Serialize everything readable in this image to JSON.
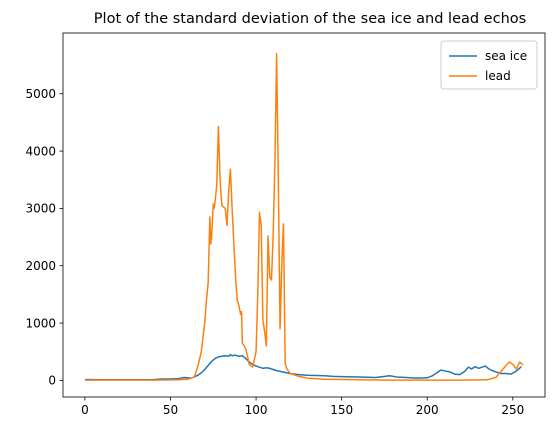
{
  "chart_data": {
    "type": "line",
    "title": "Plot of the standard deviation of the sea ice and lead echos",
    "xlabel": "",
    "ylabel": "",
    "xlim": [
      -12.8,
      268.8
    ],
    "ylim": [
      -290,
      6060
    ],
    "xticks": [
      0,
      50,
      100,
      150,
      200,
      250
    ],
    "yticks": [
      0,
      1000,
      2000,
      3000,
      4000,
      5000
    ],
    "grid": false,
    "legend_position": "top-right",
    "series": [
      {
        "name": "sea ice",
        "color": "#1f77b4",
        "points": [
          [
            0,
            15
          ],
          [
            10,
            12
          ],
          [
            20,
            12
          ],
          [
            30,
            12
          ],
          [
            40,
            14
          ],
          [
            45,
            25
          ],
          [
            50,
            25
          ],
          [
            55,
            30
          ],
          [
            58,
            50
          ],
          [
            60,
            45
          ],
          [
            62,
            40
          ],
          [
            64,
            60
          ],
          [
            66,
            90
          ],
          [
            68,
            130
          ],
          [
            70,
            190
          ],
          [
            72,
            260
          ],
          [
            74,
            330
          ],
          [
            76,
            380
          ],
          [
            78,
            410
          ],
          [
            80,
            420
          ],
          [
            82,
            430
          ],
          [
            84,
            420
          ],
          [
            85,
            450
          ],
          [
            86,
            430
          ],
          [
            88,
            440
          ],
          [
            90,
            420
          ],
          [
            92,
            430
          ],
          [
            94,
            380
          ],
          [
            96,
            320
          ],
          [
            98,
            280
          ],
          [
            100,
            250
          ],
          [
            102,
            230
          ],
          [
            104,
            210
          ],
          [
            106,
            220
          ],
          [
            108,
            210
          ],
          [
            110,
            190
          ],
          [
            112,
            170
          ],
          [
            115,
            150
          ],
          [
            120,
            120
          ],
          [
            125,
            100
          ],
          [
            130,
            90
          ],
          [
            140,
            80
          ],
          [
            145,
            70
          ],
          [
            150,
            65
          ],
          [
            160,
            60
          ],
          [
            170,
            50
          ],
          [
            175,
            70
          ],
          [
            178,
            80
          ],
          [
            182,
            60
          ],
          [
            185,
            55
          ],
          [
            190,
            45
          ],
          [
            195,
            40
          ],
          [
            200,
            45
          ],
          [
            203,
            80
          ],
          [
            206,
            140
          ],
          [
            208,
            180
          ],
          [
            211,
            160
          ],
          [
            213,
            150
          ],
          [
            216,
            110
          ],
          [
            219,
            100
          ],
          [
            222,
            160
          ],
          [
            224,
            230
          ],
          [
            226,
            200
          ],
          [
            228,
            240
          ],
          [
            230,
            210
          ],
          [
            232,
            230
          ],
          [
            234,
            250
          ],
          [
            236,
            200
          ],
          [
            238,
            170
          ],
          [
            240,
            150
          ],
          [
            243,
            120
          ],
          [
            246,
            120
          ],
          [
            249,
            110
          ],
          [
            252,
            160
          ],
          [
            255,
            240
          ]
        ]
      },
      {
        "name": "lead",
        "color": "#ff7f0e",
        "points": [
          [
            0,
            5
          ],
          [
            20,
            5
          ],
          [
            40,
            5
          ],
          [
            55,
            10
          ],
          [
            60,
            20
          ],
          [
            64,
            60
          ],
          [
            66,
            250
          ],
          [
            68,
            500
          ],
          [
            70,
            1000
          ],
          [
            71,
            1400
          ],
          [
            72,
            1700
          ],
          [
            73,
            2850
          ],
          [
            73.5,
            2380
          ],
          [
            74,
            2500
          ],
          [
            75,
            3080
          ],
          [
            75.5,
            3000
          ],
          [
            76,
            3100
          ],
          [
            77,
            3400
          ],
          [
            78,
            4430
          ],
          [
            79,
            3500
          ],
          [
            80,
            3050
          ],
          [
            82,
            3000
          ],
          [
            83,
            2700
          ],
          [
            84,
            3300
          ],
          [
            85,
            3680
          ],
          [
            86,
            3000
          ],
          [
            87,
            2400
          ],
          [
            88,
            1800
          ],
          [
            89,
            1400
          ],
          [
            90,
            1300
          ],
          [
            91,
            1150
          ],
          [
            91.5,
            1200
          ],
          [
            92,
            650
          ],
          [
            94,
            550
          ],
          [
            96,
            280
          ],
          [
            98,
            230
          ],
          [
            100,
            500
          ],
          [
            101,
            1500
          ],
          [
            102,
            2930
          ],
          [
            103,
            2700
          ],
          [
            104,
            1050
          ],
          [
            105,
            850
          ],
          [
            106,
            600
          ],
          [
            107,
            2520
          ],
          [
            108,
            1800
          ],
          [
            109,
            1750
          ],
          [
            110,
            2550
          ],
          [
            111,
            3800
          ],
          [
            112,
            5700
          ],
          [
            113,
            3500
          ],
          [
            114,
            900
          ],
          [
            115,
            2000
          ],
          [
            116,
            2730
          ],
          [
            117,
            300
          ],
          [
            118,
            200
          ],
          [
            120,
            120
          ],
          [
            125,
            70
          ],
          [
            130,
            40
          ],
          [
            140,
            20
          ],
          [
            160,
            10
          ],
          [
            180,
            5
          ],
          [
            200,
            5
          ],
          [
            220,
            5
          ],
          [
            235,
            10
          ],
          [
            240,
            50
          ],
          [
            243,
            150
          ],
          [
            246,
            260
          ],
          [
            248,
            320
          ],
          [
            250,
            280
          ],
          [
            252,
            200
          ],
          [
            254,
            320
          ],
          [
            256,
            270
          ]
        ]
      }
    ]
  }
}
